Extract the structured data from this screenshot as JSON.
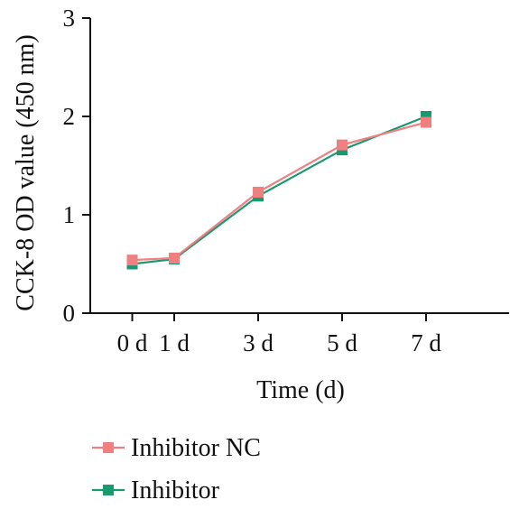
{
  "chart_data": {
    "type": "line",
    "title": "",
    "xlabel": "Time (d)",
    "ylabel": "CCK-8 OD value (450 nm)",
    "x": [
      0,
      1,
      3,
      5,
      7
    ],
    "x_tick_labels": [
      "0 d",
      "1 d",
      "3 d",
      "5 d",
      "7 d"
    ],
    "x_range": [
      -1,
      9
    ],
    "ylim": [
      0,
      3
    ],
    "y_ticks": [
      0,
      1,
      2,
      3
    ],
    "grid": false,
    "legend_position": "bottom-left",
    "series": [
      {
        "name": "Inhibitor NC",
        "color": "#f08080",
        "marker": "square",
        "values": [
          0.54,
          0.56,
          1.23,
          1.71,
          1.94
        ]
      },
      {
        "name": "Inhibitor",
        "color": "#1a9870",
        "marker": "square",
        "values": [
          0.5,
          0.55,
          1.19,
          1.66,
          2.0
        ]
      }
    ]
  }
}
